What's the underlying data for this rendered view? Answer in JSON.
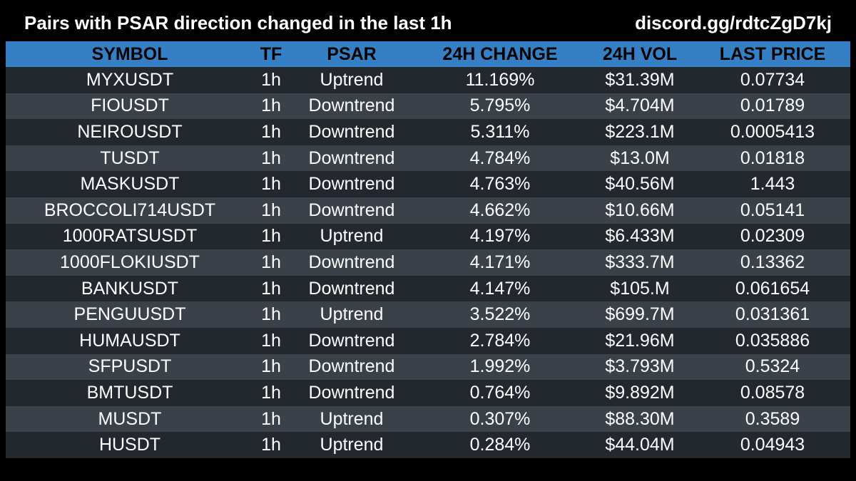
{
  "header": {
    "title": "Pairs with PSAR direction changed in the last 1h",
    "link": "discord.gg/rdtcZgD7kj"
  },
  "table": {
    "columns": [
      "SYMBOL",
      "TF",
      "PSAR",
      "24H CHANGE",
      "24H VOL",
      "LAST PRICE"
    ],
    "rows": [
      [
        "MYXUSDT",
        "1h",
        "Uptrend",
        "11.169%",
        "$31.39M",
        "0.07734"
      ],
      [
        "FIOUSDT",
        "1h",
        "Downtrend",
        "5.795%",
        "$4.704M",
        "0.01789"
      ],
      [
        "NEIROUSDT",
        "1h",
        "Downtrend",
        "5.311%",
        "$223.1M",
        "0.0005413"
      ],
      [
        "TUSDT",
        "1h",
        "Downtrend",
        "4.784%",
        "$13.0M",
        "0.01818"
      ],
      [
        "MASKUSDT",
        "1h",
        "Downtrend",
        "4.763%",
        "$40.56M",
        "1.443"
      ],
      [
        "BROCCOLI714USDT",
        "1h",
        "Downtrend",
        "4.662%",
        "$10.66M",
        "0.05141"
      ],
      [
        "1000RATSUSDT",
        "1h",
        "Uptrend",
        "4.197%",
        "$6.433M",
        "0.02309"
      ],
      [
        "1000FLOKIUSDT",
        "1h",
        "Downtrend",
        "4.171%",
        "$333.7M",
        "0.13362"
      ],
      [
        "BANKUSDT",
        "1h",
        "Downtrend",
        "4.147%",
        "$105.M",
        "0.061654"
      ],
      [
        "PENGUUSDT",
        "1h",
        "Uptrend",
        "3.522%",
        "$699.7M",
        "0.031361"
      ],
      [
        "HUMAUSDT",
        "1h",
        "Downtrend",
        "2.784%",
        "$21.96M",
        "0.035886"
      ],
      [
        "SFPUSDT",
        "1h",
        "Downtrend",
        "1.992%",
        "$3.793M",
        "0.5324"
      ],
      [
        "BMTUSDT",
        "1h",
        "Downtrend",
        "0.764%",
        "$9.892M",
        "0.08578"
      ],
      [
        "MUSDT",
        "1h",
        "Uptrend",
        "0.307%",
        "$88.30M",
        "0.3589"
      ],
      [
        "HUSDT",
        "1h",
        "Uptrend",
        "0.284%",
        "$44.04M",
        "0.04943"
      ]
    ]
  },
  "colors": {
    "background": "#000000",
    "header_bar": "#3580c4",
    "row_dark": "#22282e",
    "row_light": "#3a4148",
    "text": "#ffffff",
    "header_text": "#000000"
  }
}
